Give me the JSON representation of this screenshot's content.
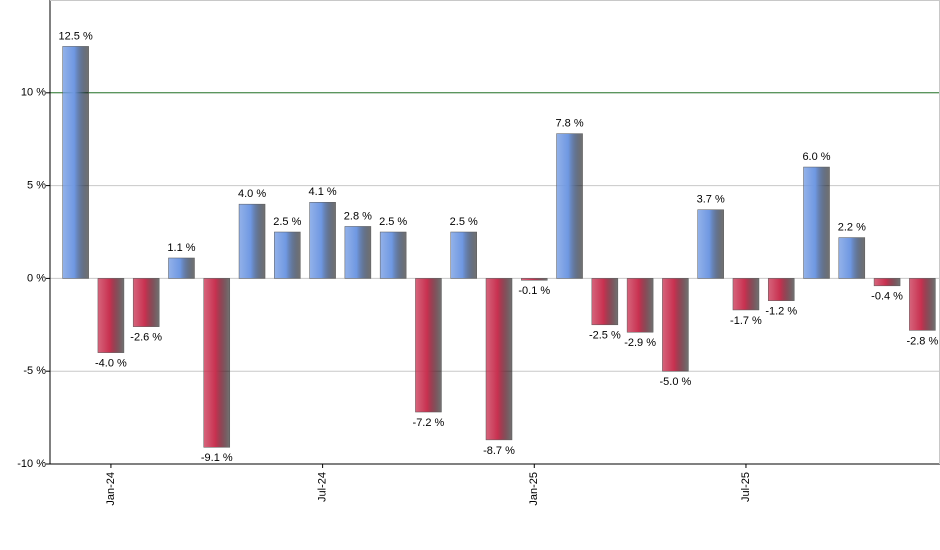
{
  "chart_data": {
    "type": "bar",
    "categories": [
      null,
      "Jan-24",
      null,
      null,
      null,
      null,
      null,
      "Jul-24",
      null,
      null,
      null,
      null,
      null,
      "Jan-25",
      null,
      null,
      null,
      null,
      null,
      "Jul-25",
      null,
      null,
      null,
      null,
      null
    ],
    "values": [
      12.5,
      -4.0,
      -2.6,
      1.1,
      -9.1,
      4.0,
      2.5,
      4.1,
      2.8,
      2.5,
      -7.2,
      2.5,
      -8.7,
      -0.1,
      7.8,
      -2.5,
      -2.9,
      -5.0,
      3.7,
      -1.7,
      -1.2,
      6.0,
      2.2,
      -0.4,
      -2.8
    ],
    "value_labels": [
      "12.5 %",
      "-4.0 %",
      "-2.6 %",
      "1.1 %",
      "-9.1 %",
      "4.0 %",
      "2.5 %",
      "4.1 %",
      "2.8 %",
      "2.5 %",
      "-7.2 %",
      "2.5 %",
      "-8.7 %",
      "-0.1 %",
      "7.8 %",
      "-2.5 %",
      "-2.9 %",
      "-5.0 %",
      "3.7 %",
      "-1.7 %",
      "-1.2 %",
      "6.0 %",
      "2.2 %",
      "-0.4 %",
      "-2.8 %"
    ],
    "positive_color": "#6f98e2",
    "negative_color": "#c83150",
    "ylim": [
      -10,
      15
    ],
    "yticks": [
      {
        "value": -10,
        "label": "-10 %"
      },
      {
        "value": -5,
        "label": "-5 %"
      },
      {
        "value": 0,
        "label": "0 %"
      },
      {
        "value": 5,
        "label": "5 %"
      },
      {
        "value": 10,
        "label": "10 %"
      }
    ],
    "grid": true,
    "reference_line": {
      "value": 10,
      "color": "#2e7d32"
    }
  }
}
